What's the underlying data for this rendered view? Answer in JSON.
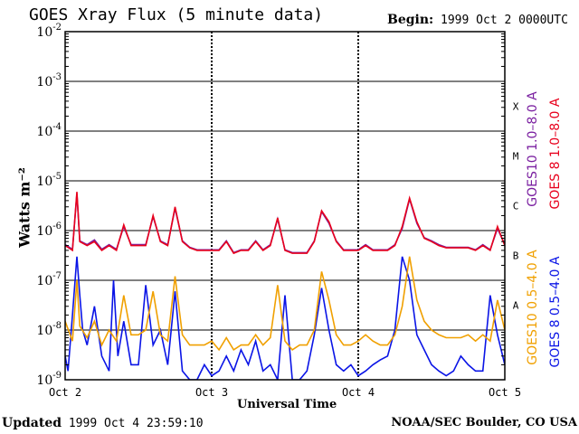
{
  "header": {
    "title": "GOES Xray Flux (5 minute data)",
    "begin_label": "Begin:",
    "begin_value": "1999 Oct 2 0000UTC"
  },
  "footer": {
    "updated_label": "Updated",
    "updated_value": "1999 Oct  4 23:59:10",
    "credit": "NOAA/SEC Boulder, CO USA"
  },
  "chart_data": {
    "type": "line",
    "title": "GOES Xray Flux (5 minute data)",
    "xlabel": "Universal Time",
    "ylabel": "Watts m⁻²",
    "yscale": "log",
    "ylim": [
      1e-09,
      0.01
    ],
    "xlim": [
      0,
      3
    ],
    "x_ticks": [
      "Oct 2",
      "Oct 3",
      "Oct 4",
      "Oct 5"
    ],
    "y_ticks": [
      {
        "base": "10",
        "exp": "-9"
      },
      {
        "base": "10",
        "exp": "-8"
      },
      {
        "base": "10",
        "exp": "-7"
      },
      {
        "base": "10",
        "exp": "-6"
      },
      {
        "base": "10",
        "exp": "-5"
      },
      {
        "base": "10",
        "exp": "-4"
      },
      {
        "base": "10",
        "exp": "-3"
      },
      {
        "base": "10",
        "exp": "-2"
      }
    ],
    "flare_classes": [
      {
        "label": "A",
        "level": 1e-08
      },
      {
        "label": "B",
        "level": 1e-07
      },
      {
        "label": "C",
        "level": 1e-06
      },
      {
        "label": "M",
        "level": 1e-05
      },
      {
        "label": "X",
        "level": 0.0001
      }
    ],
    "grid": true,
    "legend_placement": "right",
    "series": [
      {
        "name": "GOES 8 1.0–8.0 A",
        "color": "#e8001c",
        "x": [
          0,
          0.05,
          0.08,
          0.1,
          0.15,
          0.2,
          0.25,
          0.3,
          0.35,
          0.4,
          0.45,
          0.5,
          0.55,
          0.6,
          0.65,
          0.7,
          0.75,
          0.8,
          0.85,
          0.9,
          0.95,
          1.0,
          1.05,
          1.1,
          1.15,
          1.2,
          1.25,
          1.3,
          1.35,
          1.4,
          1.45,
          1.5,
          1.55,
          1.6,
          1.65,
          1.7,
          1.75,
          1.8,
          1.85,
          1.9,
          1.95,
          2.0,
          2.05,
          2.1,
          2.15,
          2.2,
          2.25,
          2.3,
          2.35,
          2.4,
          2.45,
          2.5,
          2.55,
          2.6,
          2.65,
          2.7,
          2.75,
          2.8,
          2.85,
          2.9,
          2.95,
          3.0
        ],
        "values": [
          5e-07,
          4e-07,
          6e-06,
          6e-07,
          5e-07,
          6e-07,
          4e-07,
          5e-07,
          4e-07,
          1.3e-06,
          5e-07,
          5e-07,
          5e-07,
          2e-06,
          6e-07,
          5e-07,
          3e-06,
          6e-07,
          4.5e-07,
          4e-07,
          4e-07,
          4e-07,
          4e-07,
          6e-07,
          3.5e-07,
          4e-07,
          4e-07,
          6e-07,
          4e-07,
          5e-07,
          1.8e-06,
          4e-07,
          3.5e-07,
          3.5e-07,
          3.5e-07,
          6e-07,
          2.5e-06,
          1.5e-06,
          6e-07,
          4e-07,
          4e-07,
          4e-07,
          5e-07,
          4e-07,
          4e-07,
          4e-07,
          5e-07,
          1.2e-06,
          4.5e-06,
          1.5e-06,
          7e-07,
          6e-07,
          5e-07,
          4.5e-07,
          4.5e-07,
          4.5e-07,
          4.5e-07,
          4e-07,
          5e-07,
          4e-07,
          1.2e-06,
          5e-07
        ]
      },
      {
        "name": "GOES10 1.0–8.0 A",
        "color": "#7a1fa0",
        "x": [
          0,
          0.05,
          0.08,
          0.1,
          0.15,
          0.2,
          0.25,
          0.3,
          0.35,
          0.4,
          0.45,
          0.5,
          0.55,
          0.6,
          0.65,
          0.7,
          0.75,
          0.8,
          0.85,
          0.9,
          0.95,
          1.0,
          1.05,
          1.1,
          1.15,
          1.2,
          1.25,
          1.3,
          1.35,
          1.4,
          1.45,
          1.5,
          1.55,
          1.6,
          1.65,
          1.7,
          1.75,
          1.8,
          1.85,
          1.9,
          1.95,
          2.0,
          2.05,
          2.1,
          2.15,
          2.2,
          2.25,
          2.3,
          2.35,
          2.4,
          2.45,
          2.5,
          2.55,
          2.6,
          2.65,
          2.7,
          2.75,
          2.8,
          2.85,
          2.9,
          2.95,
          3.0
        ],
        "values": [
          5.2e-07,
          4.2e-07,
          5.5e-06,
          6.2e-07,
          5.2e-07,
          6.5e-07,
          4.2e-07,
          5.2e-07,
          4.2e-07,
          1.2e-06,
          5.2e-07,
          5.2e-07,
          5.2e-07,
          1.9e-06,
          6.2e-07,
          5.2e-07,
          2.8e-06,
          6.2e-07,
          4.6e-07,
          4.1e-07,
          4.1e-07,
          4.1e-07,
          4.1e-07,
          6.2e-07,
          3.6e-07,
          4.1e-07,
          4.1e-07,
          6.2e-07,
          4.1e-07,
          5.2e-07,
          1.7e-06,
          4.1e-07,
          3.6e-07,
          3.6e-07,
          3.6e-07,
          6.2e-07,
          2.4e-06,
          1.4e-06,
          6.2e-07,
          4.1e-07,
          4.1e-07,
          4.1e-07,
          5.2e-07,
          4.1e-07,
          4.1e-07,
          4.1e-07,
          5.2e-07,
          1.1e-06,
          4.3e-06,
          1.4e-06,
          7.2e-07,
          6.2e-07,
          5.2e-07,
          4.6e-07,
          4.6e-07,
          4.6e-07,
          4.6e-07,
          4.1e-07,
          5.2e-07,
          4.1e-07,
          1.1e-06,
          5.2e-07
        ]
      },
      {
        "name": "GOES 8 0.5–4.0 A",
        "color": "#0a14e6",
        "x": [
          0,
          0.02,
          0.05,
          0.08,
          0.1,
          0.12,
          0.15,
          0.2,
          0.25,
          0.3,
          0.33,
          0.36,
          0.4,
          0.45,
          0.5,
          0.55,
          0.6,
          0.65,
          0.7,
          0.75,
          0.8,
          0.85,
          0.9,
          0.95,
          1.0,
          1.05,
          1.1,
          1.15,
          1.2,
          1.25,
          1.3,
          1.35,
          1.4,
          1.45,
          1.5,
          1.55,
          1.6,
          1.65,
          1.7,
          1.75,
          1.8,
          1.85,
          1.9,
          1.95,
          2.0,
          2.05,
          2.1,
          2.15,
          2.2,
          2.25,
          2.3,
          2.35,
          2.4,
          2.45,
          2.5,
          2.55,
          2.6,
          2.65,
          2.7,
          2.75,
          2.8,
          2.85,
          2.9,
          2.95,
          3.0
        ],
        "values": [
          3e-09,
          1.5e-09,
          2e-08,
          3e-07,
          5e-08,
          1e-08,
          5e-09,
          3e-08,
          3e-09,
          1.5e-09,
          1e-07,
          3e-09,
          1.5e-08,
          2e-09,
          2e-09,
          8e-08,
          5e-09,
          1e-08,
          2e-09,
          6e-08,
          1.5e-09,
          1e-09,
          1e-09,
          2e-09,
          1.2e-09,
          1.5e-09,
          3e-09,
          1.5e-09,
          4e-09,
          2e-09,
          6e-09,
          1.5e-09,
          2e-09,
          1e-09,
          5e-08,
          1e-09,
          1e-09,
          1.5e-09,
          8e-09,
          7e-08,
          1e-08,
          2e-09,
          1.5e-09,
          2e-09,
          1.2e-09,
          1.5e-09,
          2e-09,
          2.5e-09,
          3e-09,
          1e-08,
          3e-07,
          1e-07,
          8e-09,
          4e-09,
          2e-09,
          1.5e-09,
          1.2e-09,
          1.5e-09,
          3e-09,
          2e-09,
          1.5e-09,
          1.5e-09,
          5e-08,
          8e-09,
          2e-09
        ]
      },
      {
        "name": "GOES10 0.5–4.0 A",
        "color": "#f0a000",
        "x": [
          0,
          0.05,
          0.08,
          0.1,
          0.15,
          0.2,
          0.25,
          0.3,
          0.35,
          0.4,
          0.45,
          0.5,
          0.55,
          0.6,
          0.65,
          0.7,
          0.75,
          0.8,
          0.85,
          0.9,
          0.95,
          1.0,
          1.05,
          1.1,
          1.15,
          1.2,
          1.25,
          1.3,
          1.35,
          1.4,
          1.45,
          1.5,
          1.55,
          1.6,
          1.65,
          1.7,
          1.75,
          1.8,
          1.85,
          1.9,
          1.95,
          2.0,
          2.05,
          2.1,
          2.15,
          2.2,
          2.25,
          2.3,
          2.35,
          2.4,
          2.45,
          2.5,
          2.55,
          2.6,
          2.65,
          2.7,
          2.75,
          2.8,
          2.85,
          2.9,
          2.95,
          3.0
        ],
        "values": [
          1.5e-08,
          6e-09,
          1e-07,
          1.2e-08,
          7e-09,
          1.5e-08,
          5e-09,
          1e-08,
          6e-09,
          5e-08,
          8e-09,
          8e-09,
          1e-08,
          6e-08,
          8e-09,
          6e-09,
          1.2e-07,
          8e-09,
          5e-09,
          5e-09,
          5e-09,
          6e-09,
          4e-09,
          7e-09,
          4e-09,
          5e-09,
          5e-09,
          8e-09,
          5e-09,
          7e-09,
          8e-08,
          6e-09,
          4e-09,
          5e-09,
          5e-09,
          1e-08,
          1.5e-07,
          4e-08,
          8e-09,
          5e-09,
          5e-09,
          6e-09,
          8e-09,
          6e-09,
          5e-09,
          5e-09,
          8e-09,
          3e-08,
          3e-07,
          4e-08,
          1.5e-08,
          1e-08,
          8e-09,
          7e-09,
          7e-09,
          7e-09,
          8e-09,
          6e-09,
          8e-09,
          6e-09,
          4e-08,
          1e-08
        ]
      }
    ]
  }
}
